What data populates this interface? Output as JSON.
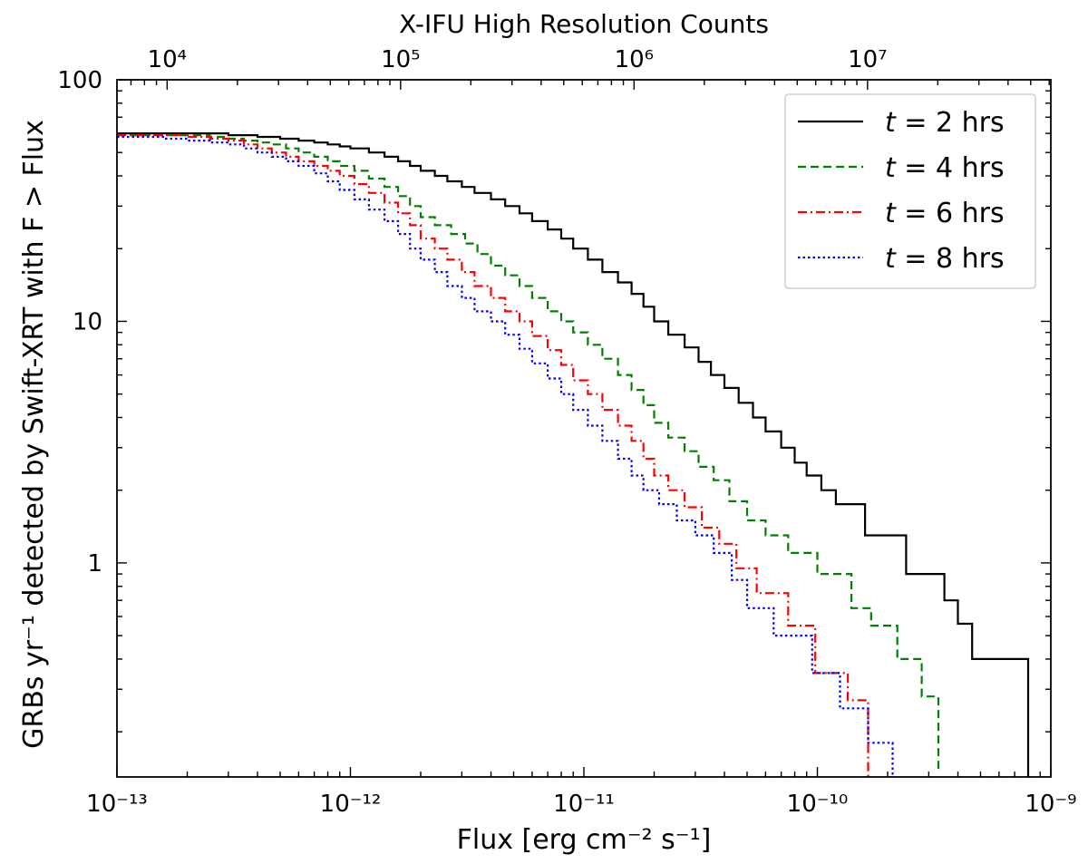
{
  "chart_data": {
    "type": "line",
    "step": true,
    "title": "X-IFU High Resolution Counts",
    "xlabel": "Flux [erg cm⁻² s⁻¹]",
    "ylabel": "GRBs yr⁻¹ detected by Swift-XRT with F > Flux",
    "xscale": "log",
    "yscale": "log",
    "xlim": [
      1e-13,
      1e-09
    ],
    "ylim": [
      0.13,
      100
    ],
    "x_ticks": [
      1e-13,
      1e-12,
      1e-11,
      1e-10,
      1e-09
    ],
    "x_tick_labels": [
      "10⁻¹³",
      "10⁻¹²",
      "10⁻¹¹",
      "10⁻¹⁰",
      "10⁻⁹"
    ],
    "y_ticks": [
      1,
      10,
      100
    ],
    "y_tick_labels": [
      "1",
      "10",
      "100"
    ],
    "top_axis": {
      "label": "X-IFU High Resolution Counts",
      "ticks": [
        {
          "flux": 1.64e-13,
          "label": "10⁴"
        },
        {
          "flux": 1.64e-12,
          "label": "10⁵"
        },
        {
          "flux": 1.64e-11,
          "label": "10⁶"
        },
        {
          "flux": 1.64e-10,
          "label": "10⁷"
        }
      ]
    },
    "legend": {
      "position": "top-right"
    },
    "series": [
      {
        "name": "t = 2 hrs",
        "color": "#000000",
        "dash": "solid",
        "x": [
          1e-13,
          3e-13,
          4e-13,
          5e-13,
          6e-13,
          7e-13,
          8e-13,
          9e-13,
          1e-12,
          1.2e-12,
          1.4e-12,
          1.6e-12,
          1.8e-12,
          2e-12,
          2.3e-12,
          2.6e-12,
          3e-12,
          3.4e-12,
          4e-12,
          4.6e-12,
          5.3e-12,
          6e-12,
          7e-12,
          8e-12,
          9e-12,
          1.04e-11,
          1.2e-11,
          1.4e-11,
          1.6e-11,
          1.8e-11,
          2e-11,
          2.3e-11,
          2.7e-11,
          3.1e-11,
          3.5e-11,
          4e-11,
          4.6e-11,
          5.3e-11,
          6e-11,
          7e-11,
          8e-11,
          9e-11,
          1.04e-10,
          1.2e-10,
          1.6e-10,
          2.4e-10,
          3.5e-10,
          4e-10,
          4.6e-10,
          8e-10
        ],
        "y": [
          60,
          59,
          58,
          57,
          56,
          55,
          54,
          53,
          52,
          50,
          48,
          46,
          44,
          42,
          40,
          38,
          36,
          34,
          32,
          30,
          28,
          26,
          24,
          22,
          20,
          18,
          16,
          14.5,
          13,
          11.5,
          10,
          8.8,
          7.8,
          6.8,
          6,
          5.3,
          4.6,
          4,
          3.5,
          3,
          2.6,
          2.3,
          2,
          1.75,
          1.3,
          0.9,
          0.7,
          0.56,
          0.4,
          0.14
        ]
      },
      {
        "name": "t = 4 hrs",
        "color": "#008000",
        "dash": "dashed",
        "x": [
          1e-13,
          2.5e-13,
          3e-13,
          3.5e-13,
          4e-13,
          4.6e-13,
          5.3e-13,
          6e-13,
          7e-13,
          8e-13,
          9e-13,
          1.04e-12,
          1.2e-12,
          1.4e-12,
          1.6e-12,
          1.8e-12,
          2e-12,
          2.3e-12,
          2.7e-12,
          3.1e-12,
          3.5e-12,
          4e-12,
          4.6e-12,
          5.3e-12,
          6e-12,
          7e-12,
          8e-12,
          9e-12,
          1.04e-11,
          1.2e-11,
          1.4e-11,
          1.6e-11,
          1.8e-11,
          2e-11,
          2.3e-11,
          2.7e-11,
          3.1e-11,
          3.6e-11,
          4.2e-11,
          5e-11,
          6e-11,
          7.5e-11,
          1e-10,
          1.4e-10,
          1.7e-10,
          2.2e-10,
          2.8e-10,
          3.3e-10
        ],
        "y": [
          59,
          58,
          57,
          56,
          55,
          54,
          52,
          50,
          48,
          46,
          44,
          42,
          39,
          36,
          33,
          30,
          27,
          25,
          23,
          21,
          19,
          17,
          15.5,
          14,
          12.5,
          11,
          10,
          9,
          8,
          7,
          6,
          5.2,
          4.5,
          3.8,
          3.3,
          2.9,
          2.5,
          2.2,
          1.8,
          1.5,
          1.3,
          1.1,
          0.9,
          0.65,
          0.55,
          0.4,
          0.28,
          0.18
        ]
      },
      {
        "name": "t = 6 hrs",
        "color": "#ff0000",
        "dash": "dashdot",
        "x": [
          1e-13,
          2e-13,
          2.5e-13,
          3e-13,
          3.5e-13,
          4e-13,
          4.6e-13,
          5.3e-13,
          6e-13,
          7e-13,
          8e-13,
          9e-13,
          1.04e-12,
          1.2e-12,
          1.4e-12,
          1.6e-12,
          1.8e-12,
          2e-12,
          2.3e-12,
          2.6e-12,
          3e-12,
          3.4e-12,
          4e-12,
          4.6e-12,
          5.3e-12,
          6e-12,
          7e-12,
          8e-12,
          9e-12,
          1.04e-11,
          1.2e-11,
          1.4e-11,
          1.6e-11,
          1.8e-11,
          2e-11,
          2.3e-11,
          2.7e-11,
          3.2e-11,
          3.8e-11,
          4.5e-11,
          5.5e-11,
          7.5e-11,
          9.8e-11,
          1.35e-10,
          1.65e-10
        ],
        "y": [
          59,
          58,
          57,
          56,
          54,
          52,
          50,
          48,
          46,
          44,
          42,
          40,
          37,
          34,
          31,
          28,
          25,
          22,
          20,
          18,
          16,
          14,
          12.5,
          11,
          10,
          8.7,
          7.6,
          6.6,
          5.7,
          5,
          4.3,
          3.7,
          3.2,
          2.7,
          2.3,
          2,
          1.7,
          1.4,
          1.2,
          0.95,
          0.75,
          0.55,
          0.35,
          0.27,
          0.14
        ]
      },
      {
        "name": "t = 8 hrs",
        "color": "#0000ff",
        "dash": "dotted",
        "x": [
          1e-13,
          1.6e-13,
          2e-13,
          2.5e-13,
          3e-13,
          3.5e-13,
          4e-13,
          4.6e-13,
          5.3e-13,
          6e-13,
          7e-13,
          8e-13,
          9e-13,
          1.04e-12,
          1.2e-12,
          1.4e-12,
          1.6e-12,
          1.8e-12,
          2e-12,
          2.3e-12,
          2.6e-12,
          3e-12,
          3.4e-12,
          4e-12,
          4.6e-12,
          5.3e-12,
          6e-12,
          7e-12,
          8e-12,
          9e-12,
          1.04e-11,
          1.2e-11,
          1.4e-11,
          1.6e-11,
          1.8e-11,
          2.1e-11,
          2.5e-11,
          3e-11,
          3.6e-11,
          4.3e-11,
          5e-11,
          6.5e-11,
          9.5e-11,
          1.25e-10,
          1.65e-10,
          2.1e-10
        ],
        "y": [
          58,
          57,
          56,
          55,
          54,
          52,
          50,
          48,
          46,
          44,
          41,
          38,
          35,
          32,
          29,
          26,
          23,
          20,
          18,
          16,
          14,
          12.5,
          11,
          10,
          8.8,
          7.7,
          6.7,
          5.8,
          5,
          4.3,
          3.7,
          3.2,
          2.7,
          2.3,
          2,
          1.75,
          1.5,
          1.3,
          1.1,
          0.85,
          0.65,
          0.5,
          0.35,
          0.25,
          0.18,
          0.14
        ]
      }
    ]
  }
}
